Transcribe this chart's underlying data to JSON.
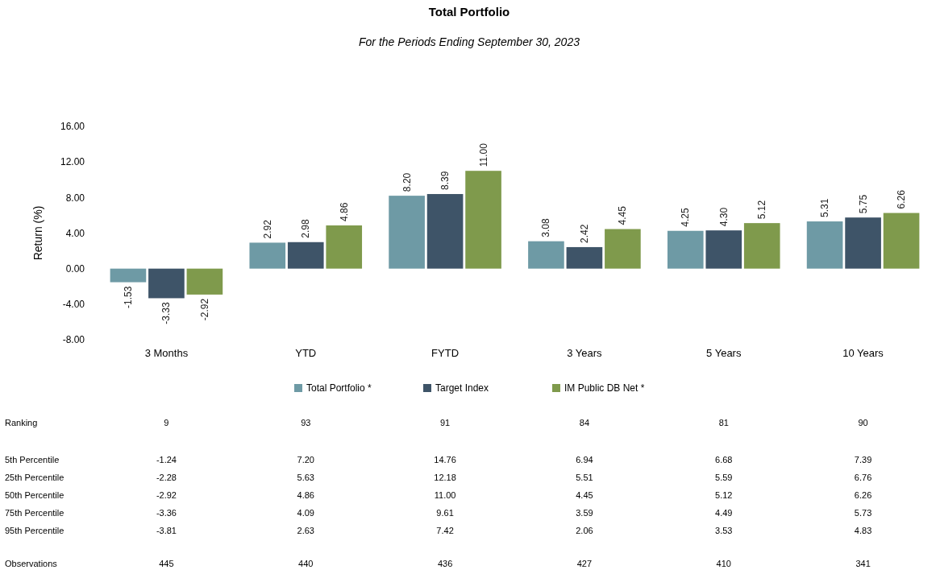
{
  "chart_data": {
    "type": "bar",
    "title": "Total Portfolio",
    "subtitle": "For the Periods Ending September 30, 2023",
    "ylabel": "Return (%)",
    "categories": [
      "3 Months",
      "YTD",
      "FYTD",
      "3 Years",
      "5 Years",
      "10 Years"
    ],
    "series": [
      {
        "name": "Total Portfolio *",
        "color": "#6e9aa5",
        "values": [
          -1.53,
          2.92,
          8.2,
          3.08,
          4.25,
          5.31
        ],
        "value_labels": [
          "-1.53",
          "2.92",
          "8.20",
          "3.08",
          "4.25",
          "5.31"
        ]
      },
      {
        "name": "Target Index",
        "color": "#3e5468",
        "values": [
          -3.33,
          2.98,
          8.39,
          2.42,
          4.3,
          5.75
        ],
        "value_labels": [
          "-3.33",
          "2.98",
          "8.39",
          "2.42",
          "4.30",
          "5.75"
        ]
      },
      {
        "name": "IM Public DB Net *",
        "color": "#7f9a4c",
        "values": [
          -2.92,
          4.86,
          11.0,
          4.45,
          5.12,
          6.26
        ],
        "value_labels": [
          "-2.92",
          "4.86",
          "11.00",
          "4.45",
          "5.12",
          "6.26"
        ]
      }
    ],
    "ylim": [
      -8,
      16
    ],
    "yticks": [
      {
        "value": -8,
        "label": "-8.00"
      },
      {
        "value": -4,
        "label": "-4.00"
      },
      {
        "value": 0,
        "label": "0.00"
      },
      {
        "value": 4,
        "label": "4.00"
      },
      {
        "value": 8,
        "label": "8.00"
      },
      {
        "value": 12,
        "label": "12.00"
      },
      {
        "value": 16,
        "label": "16.00"
      }
    ],
    "legend": "bottom",
    "annotations": [
      "Ranking",
      "9",
      "93",
      "91",
      "84",
      "81",
      "90",
      "5th Percentile",
      "-1.24",
      "7.20",
      "14.76",
      "6.94",
      "6.68",
      "7.39",
      "25th Percentile",
      "-2.28",
      "5.63",
      "12.18",
      "5.51",
      "5.59",
      "6.76",
      "50th Percentile",
      "-2.92",
      "4.86",
      "11.00",
      "4.45",
      "5.12",
      "6.26",
      "75th Percentile",
      "-3.36",
      "4.09",
      "9.61",
      "3.59",
      "4.49",
      "5.73",
      "95th Percentile",
      "-3.81",
      "2.63",
      "7.42",
      "2.06",
      "3.53",
      "4.83",
      "Observations",
      "445",
      "440",
      "436",
      "427",
      "410",
      "341"
    ]
  }
}
